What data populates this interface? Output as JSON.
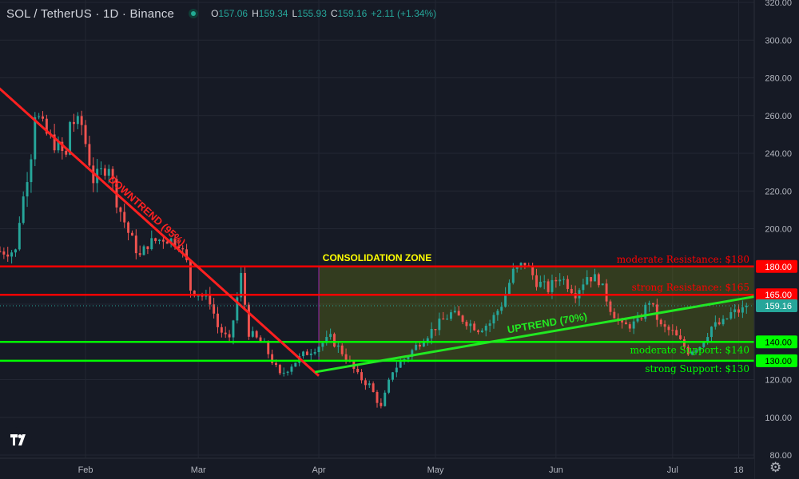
{
  "header": {
    "symbol": "SOL / TetherUS · 1D · Binance",
    "open_label": "O",
    "open": "157.06",
    "high_label": "H",
    "high": "159.34",
    "low_label": "L",
    "low": "155.93",
    "close_label": "C",
    "close": "159.16",
    "change": "+2.11 (+1.34%)"
  },
  "icons": {
    "status": "market-status-dot-icon",
    "logo": "tradingview-logo-icon",
    "settings": "gear-icon"
  },
  "colors": {
    "background": "#161a25",
    "grid": "#232733",
    "up": "#26a69a",
    "down": "#ef5350",
    "resistance": "#ff0000",
    "support": "#00ff00",
    "zone": "#ffff00"
  },
  "chart_data": {
    "type": "candlestick",
    "title": "SOL / TetherUS · 1D · Binance",
    "y_range": [
      80,
      320
    ],
    "y_ticks": [
      "80.00",
      "100.00",
      "120.00",
      "140.00",
      "160.00",
      "180.00",
      "200.00",
      "220.00",
      "240.00",
      "260.00",
      "280.00",
      "300.00",
      "320.00"
    ],
    "x_range": [
      "2024-01-10",
      "2024-07-22"
    ],
    "x_ticks": [
      {
        "date": "2024-02-01",
        "label": "Feb"
      },
      {
        "date": "2024-03-01",
        "label": "Mar"
      },
      {
        "date": "2024-04-01",
        "label": "Apr"
      },
      {
        "date": "2024-05-01",
        "label": "May"
      },
      {
        "date": "2024-06-01",
        "label": "Jun"
      },
      {
        "date": "2024-07-01",
        "label": "Jul"
      },
      {
        "date": "2024-07-18",
        "label": "18"
      }
    ],
    "price_anchors": [
      [
        "2024-01-10",
        188
      ],
      [
        "2024-01-14",
        188
      ],
      [
        "2024-01-15",
        205
      ],
      [
        "2024-01-18",
        240
      ],
      [
        "2024-01-19",
        262
      ],
      [
        "2024-01-22",
        250
      ],
      [
        "2024-01-27",
        238
      ],
      [
        "2024-01-28",
        257
      ],
      [
        "2024-01-31",
        255
      ],
      [
        "2024-02-03",
        226
      ],
      [
        "2024-02-07",
        234
      ],
      [
        "2024-02-09",
        215
      ],
      [
        "2024-02-12",
        198
      ],
      [
        "2024-02-15",
        185
      ],
      [
        "2024-02-17",
        192
      ],
      [
        "2024-02-21",
        195
      ],
      [
        "2024-02-25",
        193
      ],
      [
        "2024-02-27",
        182
      ],
      [
        "2024-02-28",
        168
      ],
      [
        "2024-03-04",
        162
      ],
      [
        "2024-03-06",
        148
      ],
      [
        "2024-03-09",
        140
      ],
      [
        "2024-03-12",
        175
      ],
      [
        "2024-03-14",
        145
      ],
      [
        "2024-03-18",
        138
      ],
      [
        "2024-03-22",
        122
      ],
      [
        "2024-03-25",
        128
      ],
      [
        "2024-03-28",
        133
      ],
      [
        "2024-04-04",
        142
      ],
      [
        "2024-04-08",
        132
      ],
      [
        "2024-04-11",
        122
      ],
      [
        "2024-04-14",
        117
      ],
      [
        "2024-04-17",
        105
      ],
      [
        "2024-04-20",
        125
      ],
      [
        "2024-04-24",
        133
      ],
      [
        "2024-04-27",
        140
      ],
      [
        "2024-05-01",
        148
      ],
      [
        "2024-05-05",
        155
      ],
      [
        "2024-05-08",
        152
      ],
      [
        "2024-05-12",
        147
      ],
      [
        "2024-05-15",
        150
      ],
      [
        "2024-05-18",
        160
      ],
      [
        "2024-05-21",
        177
      ],
      [
        "2024-05-24",
        182
      ],
      [
        "2024-05-27",
        172
      ],
      [
        "2024-05-30",
        168
      ],
      [
        "2024-06-02",
        175
      ],
      [
        "2024-06-06",
        166
      ],
      [
        "2024-06-09",
        175
      ],
      [
        "2024-06-12",
        173
      ],
      [
        "2024-06-15",
        158
      ],
      [
        "2024-06-18",
        148
      ],
      [
        "2024-06-22",
        150
      ],
      [
        "2024-06-25",
        162
      ],
      [
        "2024-06-28",
        148
      ],
      [
        "2024-07-01",
        145
      ],
      [
        "2024-07-05",
        135
      ],
      [
        "2024-07-08",
        138
      ],
      [
        "2024-07-11",
        148
      ],
      [
        "2024-07-14",
        150
      ],
      [
        "2024-07-16",
        155
      ],
      [
        "2024-07-19",
        157
      ],
      [
        "2024-07-20",
        159.16
      ]
    ],
    "last_price": 159.16,
    "annotations": {
      "downtrend": {
        "label": "DOWNTREND (95%)",
        "start": [
          "2024-01-09",
          276
        ],
        "end": [
          "2024-04-01",
          122
        ],
        "color": "#ff2020"
      },
      "uptrend": {
        "label": "UPTREND (70%)",
        "start": [
          "2024-03-31",
          124
        ],
        "end": [
          "2024-07-22",
          164
        ],
        "color": "#22e822"
      },
      "consolidation_zone": {
        "label": "CONSOLIDATION ZONE",
        "x_start": "2024-04-01",
        "x_end": "2024-07-22",
        "y_low": 130,
        "y_high": 180
      },
      "levels": [
        {
          "price": 180,
          "tag": "180.00",
          "label": "moderate Resistance: $180",
          "color": "#ff0000"
        },
        {
          "price": 165,
          "tag": "165.00",
          "label": "strong Resistance: $165",
          "color": "#ff0000"
        },
        {
          "price": 140,
          "tag": "140.00",
          "label": "moderate Support: $140",
          "color": "#00ff00"
        },
        {
          "price": 130,
          "tag": "130.00",
          "label": "strong Support: $130",
          "color": "#00ff00"
        }
      ],
      "last_price_tag": "159.16"
    }
  }
}
